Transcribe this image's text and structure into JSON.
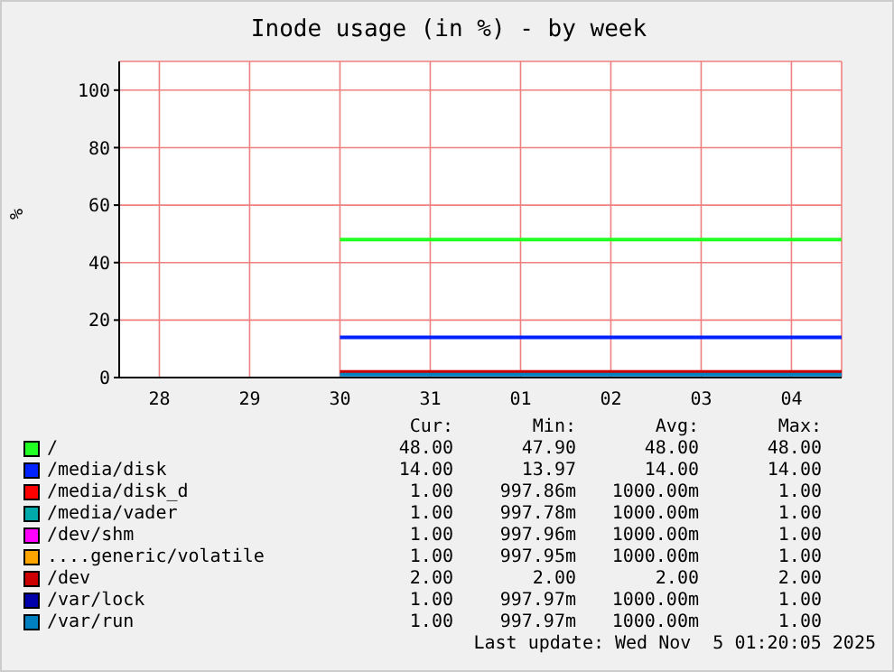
{
  "chart_data": {
    "type": "line",
    "title": "Inode usage (in %) - by week",
    "ylabel": "%",
    "x": [
      "2025-10-30T12:00",
      "2025-11-05T01:20"
    ],
    "xlim": [
      "2025-10-28T01:20",
      "2025-11-05T01:20"
    ],
    "xticks": [
      {
        "value": "2025-10-28T12:00",
        "label": "28"
      },
      {
        "value": "2025-10-29T12:00",
        "label": "29"
      },
      {
        "value": "2025-10-30T12:00",
        "label": "30"
      },
      {
        "value": "2025-10-31T12:00",
        "label": "31"
      },
      {
        "value": "2025-11-01T12:00",
        "label": "01"
      },
      {
        "value": "2025-11-02T12:00",
        "label": "02"
      },
      {
        "value": "2025-11-03T12:00",
        "label": "03"
      },
      {
        "value": "2025-11-04T12:00",
        "label": "04"
      }
    ],
    "ylim": [
      0,
      110
    ],
    "yticks": [
      0,
      20,
      40,
      60,
      80,
      100
    ],
    "grid": true,
    "legend": "bottom",
    "marker": "none",
    "line_style": "solid",
    "series": [
      {
        "name": "/",
        "color": "#22ff22",
        "values": [
          48,
          48
        ]
      },
      {
        "name": "/media/disk",
        "color": "#0022ff",
        "values": [
          14,
          14
        ]
      },
      {
        "name": "/media/disk_d",
        "color": "#ff0000",
        "values": [
          null,
          null
        ]
      },
      {
        "name": "/media/vader",
        "color": "#00aaaa",
        "values": [
          null,
          null
        ]
      },
      {
        "name": "/dev/shm",
        "color": "#ff00ff",
        "values": [
          null,
          null
        ]
      },
      {
        "name": "....generic/volatile",
        "color": "#ffa500",
        "values": [
          null,
          null
        ]
      },
      {
        "name": "/dev",
        "color": "#cc0000",
        "values": [
          2,
          2
        ]
      },
      {
        "name": "/var/lock",
        "color": "#0000aa",
        "values": [
          null,
          null
        ]
      },
      {
        "name": "/var/run",
        "color": "#0080c0",
        "values": [
          1,
          1
        ]
      }
    ],
    "annotations": [
      "Cur:",
      "Min:",
      "Avg:",
      "Max:",
      "48.00",
      "47.90",
      "48.00",
      "48.00",
      "14.00",
      "13.97",
      "14.00",
      "14.00",
      "1.00",
      "997.86m",
      "1000.00m",
      "1.00",
      "1.00",
      "997.78m",
      "1000.00m",
      "1.00",
      "1.00",
      "997.96m",
      "1000.00m",
      "1.00",
      "1.00",
      "997.95m",
      "1000.00m",
      "1.00",
      "2.00",
      "2.00",
      "2.00",
      "2.00",
      "1.00",
      "997.97m",
      "1000.00m",
      "1.00",
      "1.00",
      "997.97m",
      "1000.00m",
      "1.00",
      "Last update: Wed Nov  5 01:20:05 2025"
    ]
  }
}
